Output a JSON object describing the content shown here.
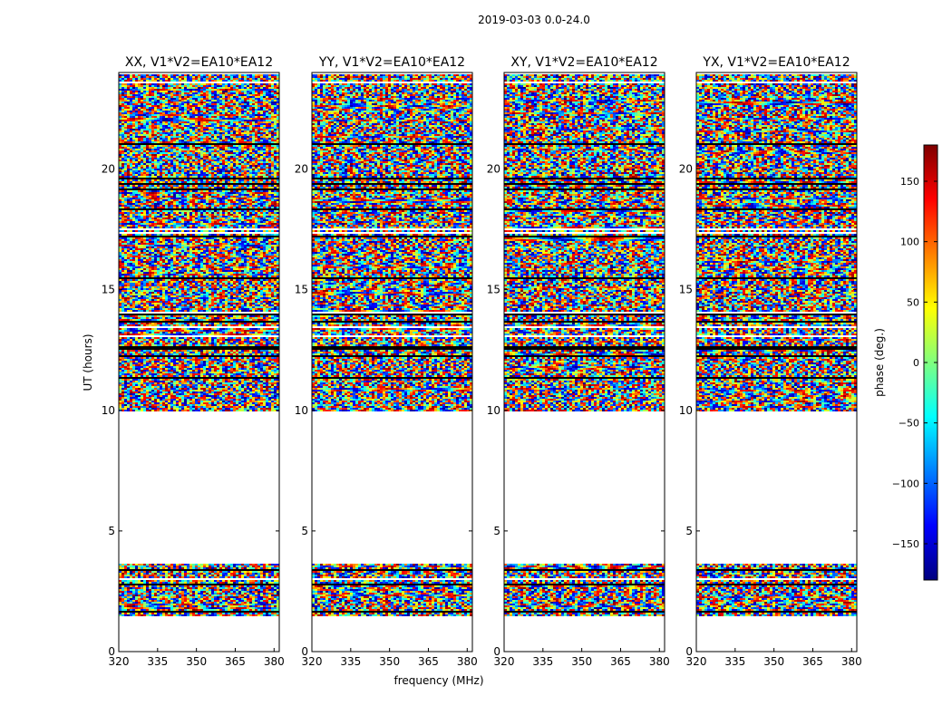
{
  "chart_data": {
    "type": "heatmap",
    "suptitle": "2019-03-03 0.0-24.0",
    "panels": [
      {
        "title": "XX, V1*V2=EA10*EA12",
        "product": "XX"
      },
      {
        "title": "YY, V1*V2=EA10*EA12",
        "product": "YY"
      },
      {
        "title": "XY, V1*V2=EA10*EA12",
        "product": "XY"
      },
      {
        "title": "YX, V1*V2=EA10*EA12",
        "product": "YX"
      }
    ],
    "xlabel": "frequency (MHz)",
    "ylabel": "UT (hours)",
    "xlim": [
      320,
      382
    ],
    "ylim": [
      0,
      24
    ],
    "xticks": [
      "320",
      "335",
      "350",
      "365",
      "380"
    ],
    "yticks": [
      "0",
      "5",
      "10",
      "15",
      "20"
    ],
    "data_time_ranges_hours": [
      [
        0.0,
        0.05
      ],
      [
        1.5,
        3.7
      ],
      [
        9.95,
        24.0
      ]
    ],
    "colorbar": {
      "label": "phase (deg.)",
      "range": [
        -180,
        180
      ],
      "ticks": [
        "150",
        "100",
        "50",
        "0",
        "−50",
        "−100",
        "−150"
      ],
      "colormap": "jet"
    }
  }
}
